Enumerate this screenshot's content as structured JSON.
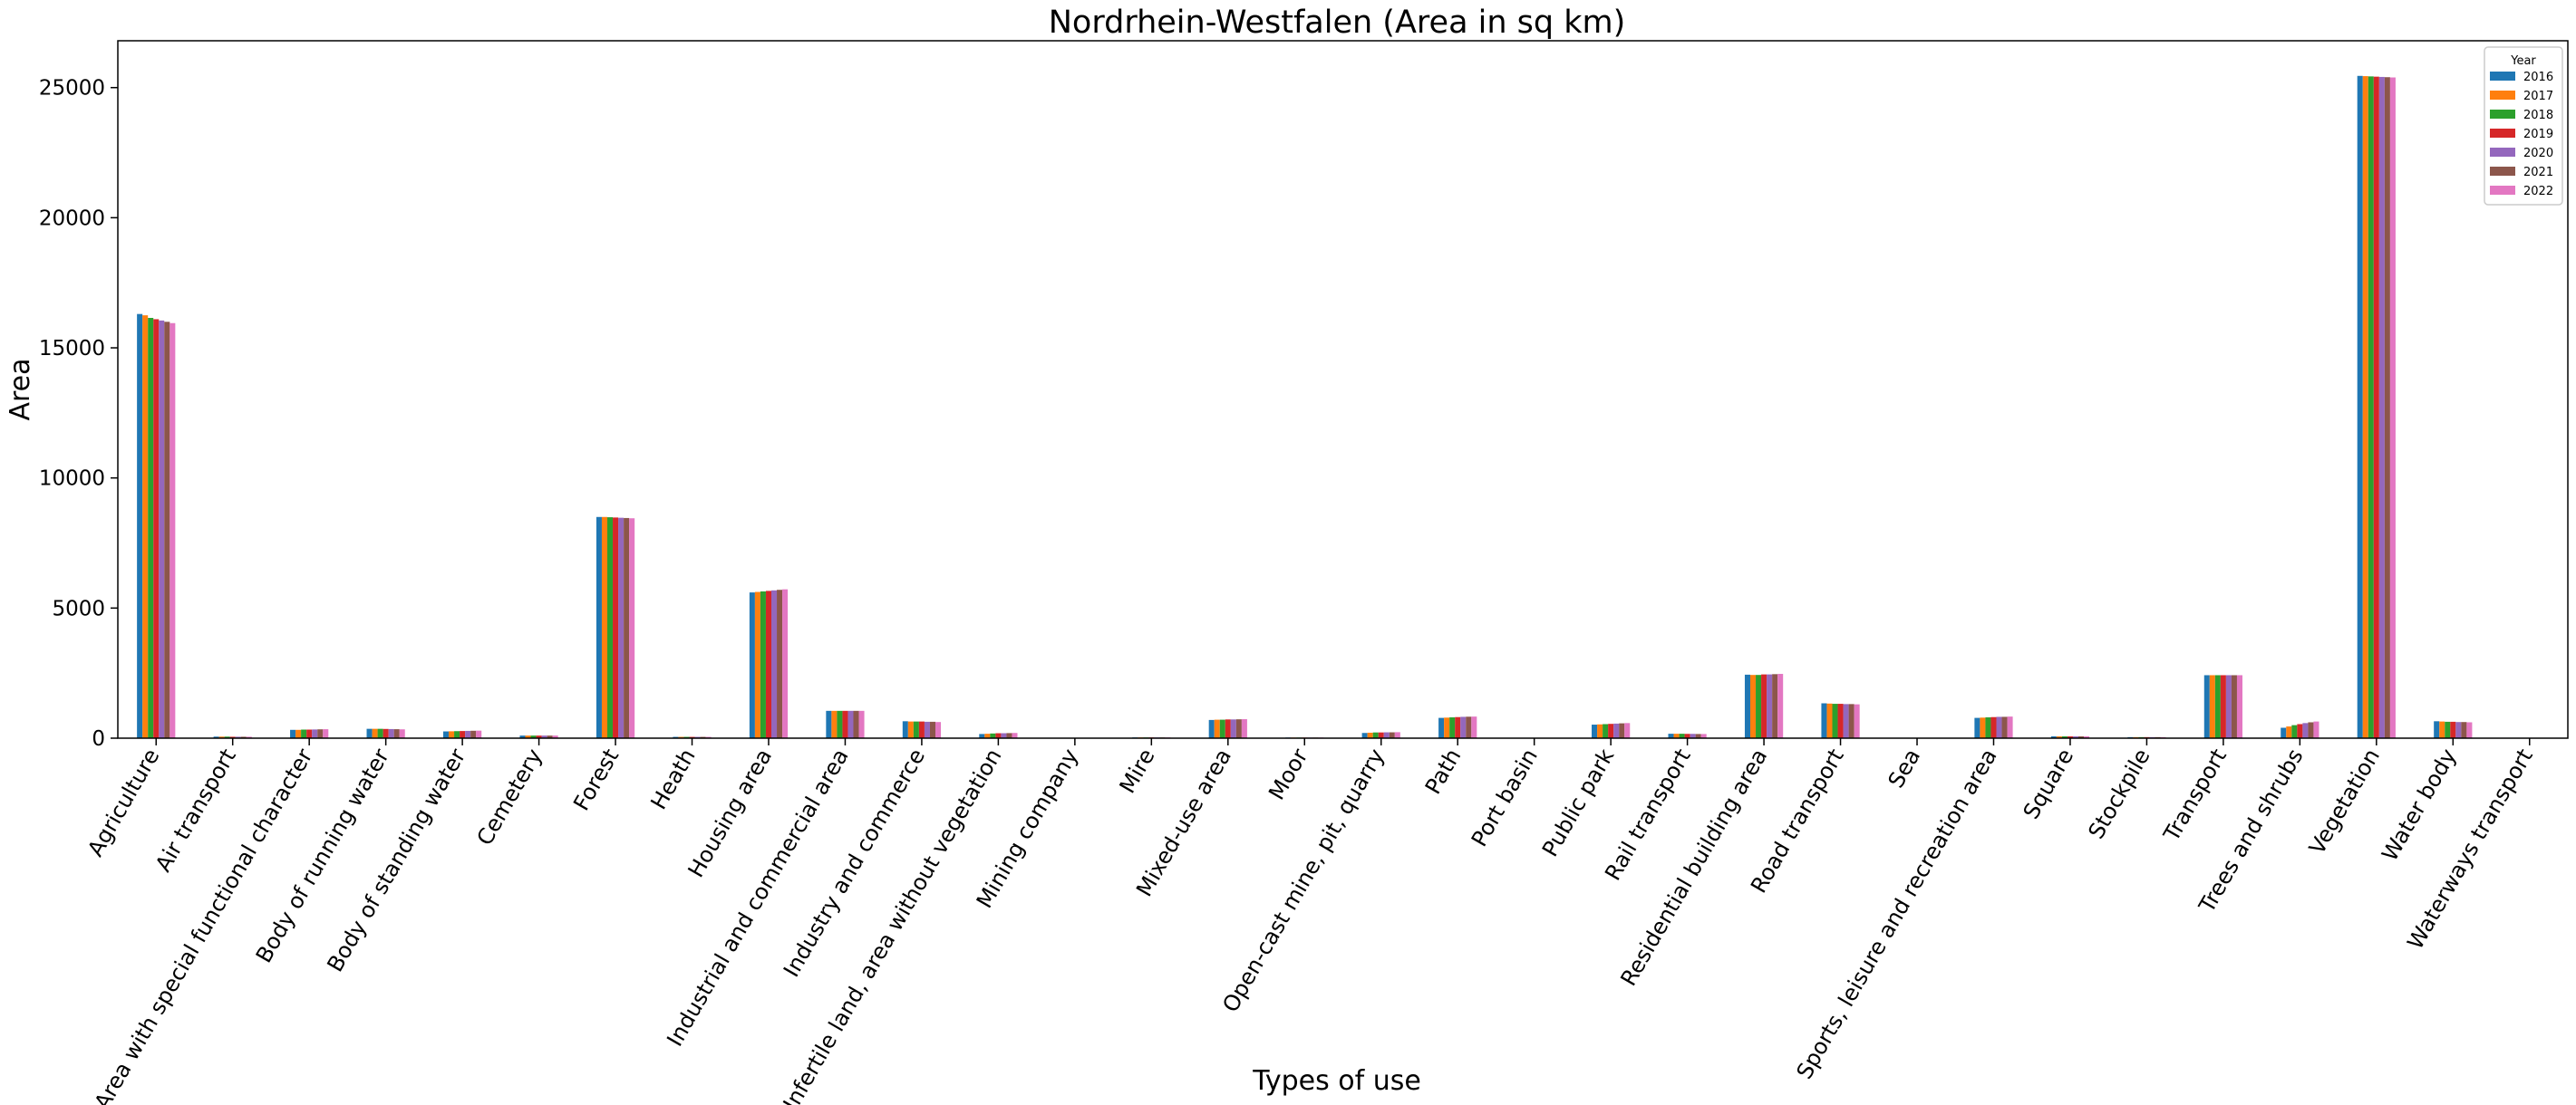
{
  "chart_data": {
    "type": "bar",
    "title": "Nordrhein-Westfalen (Area in sq km)",
    "xlabel": "Types of use",
    "ylabel": "Area",
    "ylim": [
      0,
      26800
    ],
    "yticks": [
      0,
      5000,
      10000,
      15000,
      20000,
      25000
    ],
    "grid": false,
    "legend": {
      "title": "Year",
      "position": "top-right"
    },
    "categories": [
      "Agriculture",
      "Air transport",
      "Area with special functional character",
      "Body of running water",
      "Body of standing water",
      "Cemetery",
      "Forest",
      "Heath",
      "Housing area",
      "Industrial and commercial area",
      "Industry and commerce",
      "Infertile land, area without vegetation",
      "Mining company",
      "Mire",
      "Mixed-use area",
      "Moor",
      "Open-cast mine, pit, quarry",
      "Path",
      "Port basin",
      "Public park",
      "Rail transport",
      "Residential building area",
      "Road transport",
      "Sea",
      "Sports, leisure and recreation area",
      "Square",
      "Stockpile",
      "Transport",
      "Trees and shrubs",
      "Vegetation",
      "Water body",
      "Waterways transport"
    ],
    "series": [
      {
        "name": "2016",
        "color": "#1f77b4",
        "values": [
          16300,
          60,
          320,
          360,
          260,
          100,
          8500,
          50,
          5600,
          1050,
          650,
          160,
          15,
          30,
          700,
          25,
          200,
          780,
          5,
          520,
          170,
          2440,
          1340,
          2,
          780,
          70,
          40,
          2420,
          400,
          25450,
          650,
          3
        ]
      },
      {
        "name": "2017",
        "color": "#ff7f0e",
        "values": [
          16250,
          60,
          320,
          360,
          265,
          100,
          8500,
          50,
          5620,
          1050,
          640,
          170,
          15,
          30,
          710,
          25,
          210,
          790,
          5,
          530,
          170,
          2430,
          1330,
          2,
          790,
          70,
          40,
          2420,
          450,
          25440,
          640,
          3
        ]
      },
      {
        "name": "2018",
        "color": "#2ca02c",
        "values": [
          16150,
          60,
          330,
          360,
          270,
          100,
          8490,
          50,
          5640,
          1050,
          640,
          180,
          15,
          30,
          710,
          25,
          220,
          800,
          5,
          540,
          170,
          2430,
          1320,
          2,
          800,
          70,
          40,
          2420,
          500,
          25430,
          630,
          3
        ]
      },
      {
        "name": "2019",
        "color": "#d62728",
        "values": [
          16100,
          55,
          330,
          355,
          275,
          100,
          8480,
          50,
          5660,
          1050,
          640,
          190,
          15,
          30,
          720,
          25,
          220,
          810,
          5,
          550,
          165,
          2450,
          1320,
          2,
          810,
          70,
          40,
          2420,
          540,
          25420,
          630,
          3
        ]
      },
      {
        "name": "2020",
        "color": "#9467bd",
        "values": [
          16050,
          55,
          335,
          350,
          280,
          100,
          8470,
          50,
          5680,
          1050,
          630,
          190,
          15,
          30,
          720,
          25,
          225,
          820,
          5,
          560,
          165,
          2450,
          1310,
          2,
          820,
          70,
          40,
          2420,
          580,
          25410,
          620,
          3
        ]
      },
      {
        "name": "2021",
        "color": "#8c564b",
        "values": [
          16000,
          55,
          340,
          345,
          285,
          100,
          8460,
          50,
          5700,
          1050,
          630,
          195,
          15,
          30,
          725,
          25,
          225,
          825,
          5,
          570,
          160,
          2460,
          1310,
          2,
          820,
          70,
          40,
          2420,
          610,
          25400,
          620,
          3
        ]
      },
      {
        "name": "2022",
        "color": "#e377c2",
        "values": [
          15950,
          55,
          345,
          340,
          290,
          100,
          8450,
          50,
          5720,
          1050,
          620,
          200,
          15,
          30,
          730,
          25,
          230,
          830,
          5,
          580,
          160,
          2470,
          1300,
          2,
          830,
          70,
          40,
          2420,
          640,
          25390,
          610,
          3
        ]
      }
    ]
  }
}
